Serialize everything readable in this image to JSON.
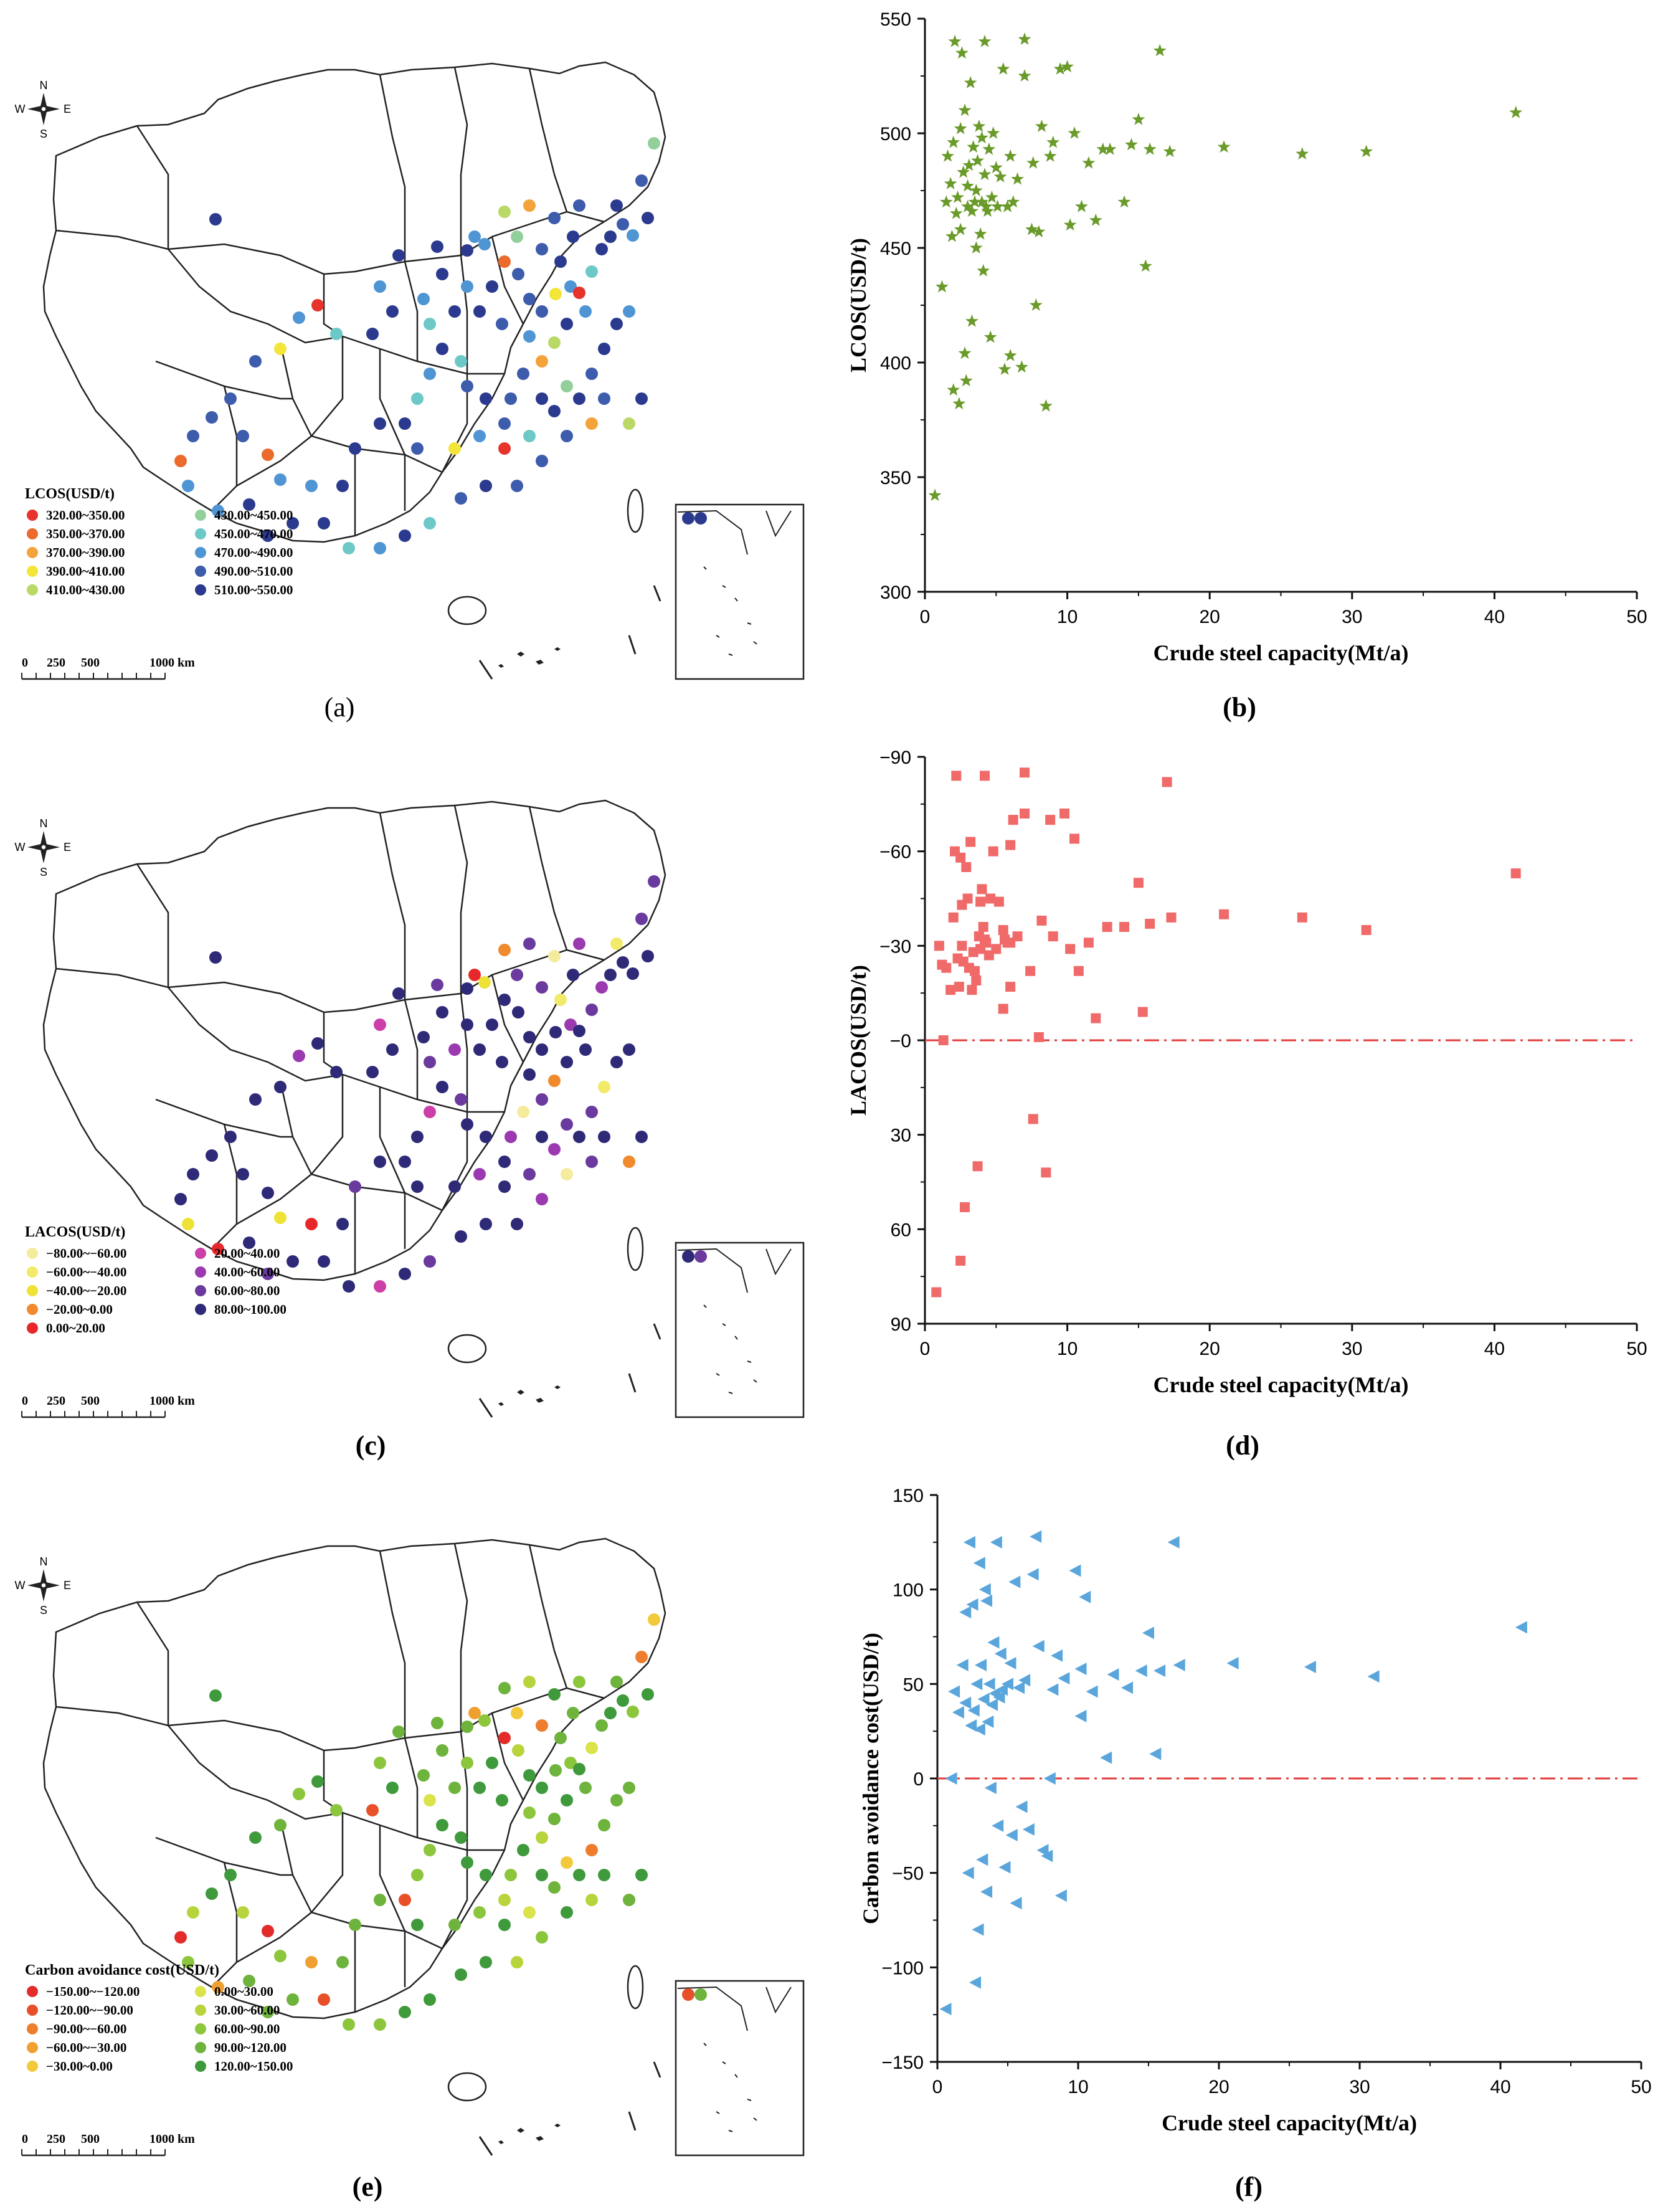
{
  "figure_labels": [
    "(a)",
    "(b)",
    "(c)",
    "(d)",
    "(e)",
    "(f)"
  ],
  "compass": {
    "n": "N",
    "s": "S",
    "e": "E",
    "w": "W"
  },
  "scale_bar": {
    "labels": [
      "0",
      "250",
      "500",
      "1000 km"
    ]
  },
  "maps": [
    {
      "legend_title": "LCOS(USD/t)",
      "legend": [
        {
          "label": "320.00~350.00",
          "color": "#e8322c"
        },
        {
          "label": "350.00~370.00",
          "color": "#ec6a2c"
        },
        {
          "label": "370.00~390.00",
          "color": "#f4a23a"
        },
        {
          "label": "390.00~410.00",
          "color": "#f3e53a"
        },
        {
          "label": "410.00~430.00",
          "color": "#b9d866"
        },
        {
          "label": "430.00~450.00",
          "color": "#93cf9b"
        },
        {
          "label": "450.00~470.00",
          "color": "#6cc9c8"
        },
        {
          "label": "470.00~490.00",
          "color": "#4f95d4"
        },
        {
          "label": "490.00~510.00",
          "color": "#3d5cac"
        },
        {
          "label": "510.00~550.00",
          "color": "#2b3a8e"
        }
      ]
    },
    {
      "legend_title": "LACOS(USD/t)",
      "legend": [
        {
          "label": "−80.00~−60.00",
          "color": "#f4ec9c"
        },
        {
          "label": "−60.00~−40.00",
          "color": "#f2ea6a"
        },
        {
          "label": "−40.00~−20.00",
          "color": "#efe236"
        },
        {
          "label": "−20.00~0.00",
          "color": "#f08a2c"
        },
        {
          "label": "0.00~20.00",
          "color": "#e8272a"
        },
        {
          "label": "20.00~40.00",
          "color": "#cc3fa8"
        },
        {
          "label": "40.00~60.00",
          "color": "#9b3ab0"
        },
        {
          "label": "60.00~80.00",
          "color": "#6a3a9e"
        },
        {
          "label": "80.00~100.00",
          "color": "#2f2a78"
        }
      ]
    },
    {
      "legend_title": "Carbon avoidance cost(USD/t)",
      "legend": [
        {
          "label": "−150.00~−120.00",
          "color": "#e32c2a"
        },
        {
          "label": "−120.00~−90.00",
          "color": "#e8502a"
        },
        {
          "label": "−90.00~−60.00",
          "color": "#ee7e2e"
        },
        {
          "label": "−60.00~−30.00",
          "color": "#f0a030"
        },
        {
          "label": "−30.00~0.00",
          "color": "#f2c93a"
        },
        {
          "label": "0.00~30.00",
          "color": "#dbe34a"
        },
        {
          "label": "30.00~60.00",
          "color": "#b7d43c"
        },
        {
          "label": "60.00~90.00",
          "color": "#8cc63c"
        },
        {
          "label": "90.00~120.00",
          "color": "#6db33c"
        },
        {
          "label": "120.00~150.00",
          "color": "#3f9a3c"
        }
      ]
    }
  ],
  "chart_data": [
    {
      "type": "scatter",
      "marker": "star",
      "color": "#6a9a2a",
      "xlabel": "Crude steel capacity(Mt/a)",
      "ylabel": "LCOS(USD/t)",
      "xlim": [
        0,
        50
      ],
      "ylim": [
        300,
        550
      ],
      "xticks": [
        0,
        10,
        20,
        30,
        40,
        50
      ],
      "yticks": [
        300,
        350,
        400,
        450,
        500,
        550
      ],
      "xtick_labels": [
        "0",
        "10",
        "20",
        "30",
        "40",
        "50"
      ],
      "ytick_labels": [
        "300",
        "350",
        "400",
        "450",
        "500",
        "550"
      ],
      "points": [
        [
          0.7,
          342
        ],
        [
          1.2,
          433
        ],
        [
          1.5,
          470
        ],
        [
          1.6,
          490
        ],
        [
          1.8,
          478
        ],
        [
          1.9,
          455
        ],
        [
          2.0,
          496
        ],
        [
          2.0,
          388
        ],
        [
          2.1,
          540
        ],
        [
          2.2,
          465
        ],
        [
          2.3,
          472
        ],
        [
          2.4,
          382
        ],
        [
          2.5,
          502
        ],
        [
          2.5,
          458
        ],
        [
          2.6,
          535
        ],
        [
          2.7,
          483
        ],
        [
          2.8,
          510
        ],
        [
          2.8,
          404
        ],
        [
          2.9,
          392
        ],
        [
          3.0,
          468
        ],
        [
          3.0,
          477
        ],
        [
          3.1,
          486
        ],
        [
          3.2,
          522
        ],
        [
          3.3,
          466
        ],
        [
          3.3,
          418
        ],
        [
          3.4,
          494
        ],
        [
          3.5,
          470
        ],
        [
          3.6,
          475
        ],
        [
          3.6,
          450
        ],
        [
          3.7,
          488
        ],
        [
          3.8,
          503
        ],
        [
          3.9,
          456
        ],
        [
          4.0,
          470
        ],
        [
          4.0,
          498
        ],
        [
          4.1,
          440
        ],
        [
          4.2,
          482
        ],
        [
          4.2,
          540
        ],
        [
          4.3,
          468
        ],
        [
          4.4,
          466
        ],
        [
          4.5,
          493
        ],
        [
          4.6,
          411
        ],
        [
          4.7,
          472
        ],
        [
          4.8,
          500
        ],
        [
          5.0,
          485
        ],
        [
          5.1,
          468
        ],
        [
          5.3,
          481
        ],
        [
          5.5,
          528
        ],
        [
          5.6,
          397
        ],
        [
          5.8,
          468
        ],
        [
          6.0,
          490
        ],
        [
          6.0,
          403
        ],
        [
          6.2,
          470
        ],
        [
          6.5,
          480
        ],
        [
          6.8,
          398
        ],
        [
          7.0,
          541
        ],
        [
          7.0,
          525
        ],
        [
          7.5,
          458
        ],
        [
          7.6,
          487
        ],
        [
          7.8,
          425
        ],
        [
          8.0,
          457
        ],
        [
          8.2,
          503
        ],
        [
          8.5,
          381
        ],
        [
          8.8,
          490
        ],
        [
          9.0,
          496
        ],
        [
          9.5,
          528
        ],
        [
          10.0,
          529
        ],
        [
          10.2,
          460
        ],
        [
          10.5,
          500
        ],
        [
          11.0,
          468
        ],
        [
          11.5,
          487
        ],
        [
          12.0,
          462
        ],
        [
          12.5,
          493
        ],
        [
          13.0,
          493
        ],
        [
          14.0,
          470
        ],
        [
          14.5,
          495
        ],
        [
          15.0,
          506
        ],
        [
          15.5,
          442
        ],
        [
          15.8,
          493
        ],
        [
          16.5,
          536
        ],
        [
          17.2,
          492
        ],
        [
          21.0,
          494
        ],
        [
          26.5,
          491
        ],
        [
          31.0,
          492
        ],
        [
          41.5,
          509
        ]
      ]
    },
    {
      "type": "scatter",
      "marker": "square",
      "color": "#f06a6a",
      "xlabel": "Crude steel capacity(Mt/a)",
      "ylabel": "LACOS(USD/t)",
      "xlim": [
        0,
        50
      ],
      "ylim": [
        -90,
        90
      ],
      "xticks": [
        0,
        10,
        20,
        30,
        40,
        50
      ],
      "yticks": [
        -90,
        -60,
        -30,
        0,
        30,
        60,
        90
      ],
      "xtick_labels": [
        "0",
        "10",
        "20",
        "30",
        "40",
        "50"
      ],
      "ytick_labels": [
        "−90",
        "−60",
        "−30",
        "−0",
        "30",
        "60",
        "90"
      ],
      "note": "Y axis drawn inverted: -90 at top, 90 at bottom; dashed red reference line at 0",
      "reference_line": 0,
      "points": [
        [
          0.8,
          80
        ],
        [
          1.0,
          -30
        ],
        [
          1.2,
          -24
        ],
        [
          1.3,
          0
        ],
        [
          1.5,
          -23
        ],
        [
          1.8,
          -16
        ],
        [
          2.0,
          -39
        ],
        [
          2.1,
          -60
        ],
        [
          2.2,
          -84
        ],
        [
          2.3,
          -26
        ],
        [
          2.4,
          -17
        ],
        [
          2.5,
          -58
        ],
        [
          2.5,
          70
        ],
        [
          2.6,
          -30
        ],
        [
          2.7,
          -25
        ],
        [
          2.8,
          53
        ],
        [
          2.9,
          -55
        ],
        [
          3.0,
          -45
        ],
        [
          3.1,
          -23
        ],
        [
          3.2,
          -63
        ],
        [
          3.3,
          -16
        ],
        [
          3.4,
          -28
        ],
        [
          3.5,
          -22
        ],
        [
          3.6,
          -19
        ],
        [
          3.7,
          40
        ],
        [
          3.8,
          -33
        ],
        [
          3.9,
          -29
        ],
        [
          4.0,
          -48
        ],
        [
          4.1,
          -36
        ],
        [
          4.2,
          -84
        ],
        [
          4.3,
          -31
        ],
        [
          4.5,
          -27
        ],
        [
          4.6,
          -45
        ],
        [
          4.8,
          -60
        ],
        [
          5.0,
          -29
        ],
        [
          5.2,
          -44
        ],
        [
          5.5,
          -35
        ],
        [
          5.6,
          -32
        ],
        [
          5.8,
          -31
        ],
        [
          6.0,
          -62
        ],
        [
          6.0,
          -31
        ],
        [
          6.2,
          -70
        ],
        [
          6.5,
          -33
        ],
        [
          7.0,
          -85
        ],
        [
          7.0,
          -72
        ],
        [
          7.4,
          -22
        ],
        [
          7.6,
          25
        ],
        [
          8.0,
          -1
        ],
        [
          8.2,
          -38
        ],
        [
          8.5,
          42
        ],
        [
          8.8,
          -70
        ],
        [
          9.0,
          -33
        ],
        [
          9.8,
          -72
        ],
        [
          10.2,
          -29
        ],
        [
          10.5,
          -64
        ],
        [
          10.8,
          -22
        ],
        [
          11.5,
          -31
        ],
        [
          12.0,
          -7
        ],
        [
          12.8,
          -36
        ],
        [
          14.0,
          -36
        ],
        [
          15.0,
          -50
        ],
        [
          15.3,
          -9
        ],
        [
          15.8,
          -37
        ],
        [
          17.0,
          -82
        ],
        [
          17.3,
          -39
        ],
        [
          21.0,
          -40
        ],
        [
          26.5,
          -39
        ],
        [
          31.0,
          -35
        ],
        [
          41.5,
          -53
        ],
        [
          5.5,
          -10
        ],
        [
          6.0,
          -17
        ],
        [
          2.6,
          -43
        ],
        [
          3.9,
          -44
        ],
        [
          4.2,
          -32
        ]
      ]
    },
    {
      "type": "scatter",
      "marker": "triangle-left",
      "color": "#5aa6dc",
      "xlabel": "Crude steel capacity(Mt/a)",
      "ylabel": "Carbon avoidance cost(USD/t)",
      "xlim": [
        0,
        50
      ],
      "ylim": [
        -150,
        150
      ],
      "xticks": [
        0,
        10,
        20,
        30,
        40,
        50
      ],
      "yticks": [
        -150,
        -100,
        -50,
        0,
        50,
        100,
        150
      ],
      "xtick_labels": [
        "0",
        "10",
        "20",
        "30",
        "40",
        "50"
      ],
      "ytick_labels": [
        "−150",
        "−100",
        "−50",
        "0",
        "50",
        "100",
        "150"
      ],
      "reference_line": 0,
      "points": [
        [
          0.6,
          -122
        ],
        [
          1.0,
          0
        ],
        [
          1.2,
          46
        ],
        [
          1.5,
          35
        ],
        [
          1.8,
          60
        ],
        [
          2.0,
          88
        ],
        [
          2.0,
          40
        ],
        [
          2.2,
          -50
        ],
        [
          2.3,
          125
        ],
        [
          2.4,
          28
        ],
        [
          2.5,
          92
        ],
        [
          2.6,
          36
        ],
        [
          2.7,
          -108
        ],
        [
          2.8,
          50
        ],
        [
          2.9,
          -80
        ],
        [
          3.0,
          114
        ],
        [
          3.0,
          26
        ],
        [
          3.1,
          60
        ],
        [
          3.2,
          -43
        ],
        [
          3.3,
          42
        ],
        [
          3.4,
          100
        ],
        [
          3.5,
          -60
        ],
        [
          3.5,
          94
        ],
        [
          3.6,
          30
        ],
        [
          3.7,
          50
        ],
        [
          3.8,
          -5
        ],
        [
          3.9,
          39
        ],
        [
          4.0,
          72
        ],
        [
          4.1,
          45
        ],
        [
          4.2,
          125
        ],
        [
          4.3,
          -25
        ],
        [
          4.4,
          43
        ],
        [
          4.5,
          66
        ],
        [
          4.6,
          47
        ],
        [
          4.8,
          -47
        ],
        [
          5.0,
          50
        ],
        [
          5.2,
          61
        ],
        [
          5.3,
          -30
        ],
        [
          5.5,
          104
        ],
        [
          5.6,
          -66
        ],
        [
          5.8,
          48
        ],
        [
          6.0,
          -15
        ],
        [
          6.2,
          52
        ],
        [
          6.5,
          -27
        ],
        [
          6.8,
          108
        ],
        [
          7.0,
          128
        ],
        [
          7.2,
          70
        ],
        [
          7.5,
          -38
        ],
        [
          7.8,
          -41
        ],
        [
          8.0,
          0
        ],
        [
          8.2,
          47
        ],
        [
          8.5,
          65
        ],
        [
          8.8,
          -62
        ],
        [
          9.0,
          53
        ],
        [
          9.8,
          110
        ],
        [
          10.2,
          33
        ],
        [
          10.5,
          96
        ],
        [
          11.0,
          46
        ],
        [
          12.0,
          11
        ],
        [
          12.5,
          55
        ],
        [
          13.5,
          48
        ],
        [
          14.5,
          57
        ],
        [
          15.0,
          77
        ],
        [
          15.5,
          13
        ],
        [
          15.8,
          57
        ],
        [
          16.8,
          125
        ],
        [
          17.2,
          60
        ],
        [
          21.0,
          61
        ],
        [
          26.5,
          59
        ],
        [
          31.0,
          54
        ],
        [
          41.5,
          80
        ],
        [
          10.2,
          58
        ]
      ]
    }
  ]
}
